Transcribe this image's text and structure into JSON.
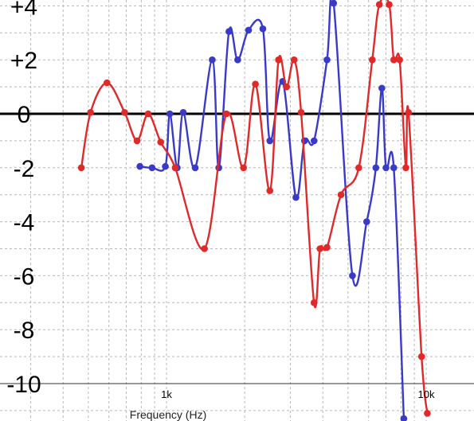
{
  "chart_data": {
    "type": "line",
    "xlabel": "Frequency (Hz)",
    "ylabel": "",
    "x_scale": "log",
    "xlim": [
      285,
      17000
    ],
    "ylim": [
      -11.1,
      4.4
    ],
    "grid": true,
    "yticks": [
      {
        "value": 4,
        "label": "+4"
      },
      {
        "value": 2,
        "label": "+2"
      },
      {
        "value": 0,
        "label": "0"
      },
      {
        "value": -2,
        "label": "-2"
      },
      {
        "value": -4,
        "label": "-4"
      },
      {
        "value": -6,
        "label": "-6"
      },
      {
        "value": -8,
        "label": "-8"
      },
      {
        "value": -10,
        "label": "-10"
      }
    ],
    "xticks": [
      {
        "value": 1000,
        "label": "1k"
      },
      {
        "value": 10000,
        "label": "10k"
      }
    ],
    "series": [
      {
        "color": "#3a3ac8",
        "points": [
          [
            790,
            -1.95
          ],
          [
            880,
            -2.0
          ],
          [
            990,
            -1.95
          ],
          [
            1030,
            0.0
          ],
          [
            1100,
            -2.0
          ],
          [
            1160,
            0.05
          ],
          [
            1290,
            -2.0
          ],
          [
            1500,
            2.0
          ],
          [
            1590,
            -2.0
          ],
          [
            1740,
            3.05
          ],
          [
            1880,
            2.0
          ],
          [
            2070,
            3.1
          ],
          [
            2350,
            3.15
          ],
          [
            2500,
            -1.0
          ],
          [
            2800,
            1.2
          ],
          [
            3150,
            -3.1
          ],
          [
            3400,
            -1.0
          ],
          [
            3700,
            -1.0
          ],
          [
            4150,
            2.0
          ],
          [
            4400,
            4.1
          ],
          [
            5200,
            -6.0
          ],
          [
            5900,
            -4.0
          ],
          [
            6400,
            -2.0
          ],
          [
            6750,
            0.95
          ],
          [
            7000,
            -2.0
          ],
          [
            7500,
            -2.0
          ],
          [
            8200,
            -11.3
          ]
        ]
      },
      {
        "color": "#e02a2a",
        "points": [
          [
            470,
            -2.0
          ],
          [
            510,
            0.05
          ],
          [
            590,
            1.15
          ],
          [
            690,
            0.05
          ],
          [
            770,
            -1.0
          ],
          [
            850,
            0.0
          ],
          [
            950,
            -1.05
          ],
          [
            1080,
            -2.0
          ],
          [
            1400,
            -5.0
          ],
          [
            1700,
            0.0
          ],
          [
            1980,
            -2.0
          ],
          [
            2200,
            1.1
          ],
          [
            2500,
            -2.85
          ],
          [
            2700,
            2.0
          ],
          [
            2900,
            1.0
          ],
          [
            3100,
            2.0
          ],
          [
            3300,
            0.05
          ],
          [
            3700,
            -7.0
          ],
          [
            3900,
            -5.0
          ],
          [
            4150,
            -4.95
          ],
          [
            4700,
            -3.0
          ],
          [
            5500,
            -2.0
          ],
          [
            6200,
            2.0
          ],
          [
            6600,
            4.05
          ],
          [
            7200,
            4.05
          ],
          [
            7500,
            2.0
          ],
          [
            7900,
            2.0
          ],
          [
            8350,
            -2.0
          ],
          [
            8550,
            0.05
          ],
          [
            9600,
            -9.0
          ],
          [
            10100,
            -11.1
          ]
        ]
      }
    ]
  }
}
